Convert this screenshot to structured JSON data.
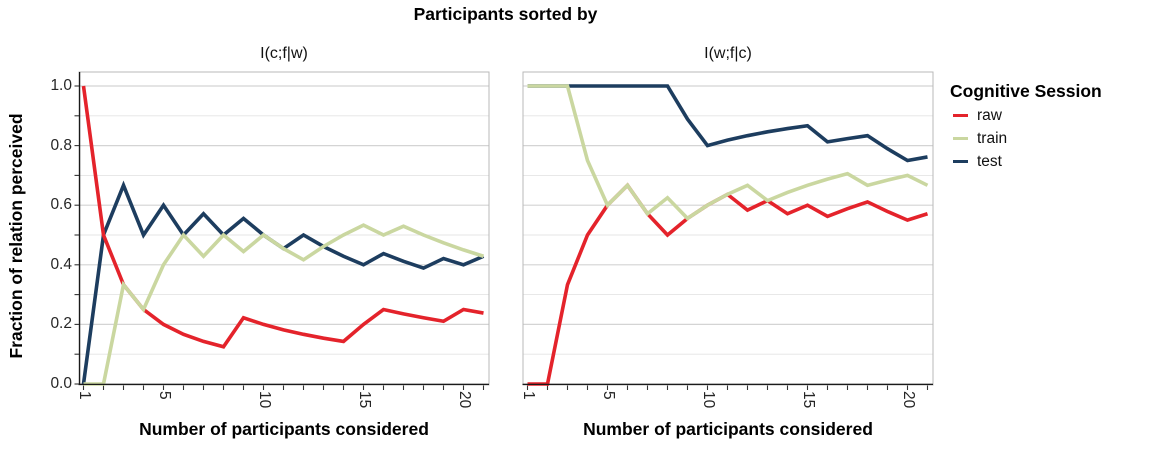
{
  "title": "Participants sorted by",
  "y_axis": {
    "label": "Fraction of relation perceived",
    "tick_labels": [
      "0.0",
      "0.2",
      "0.4",
      "0.6",
      "0.8",
      "1.0"
    ],
    "tick_values": [
      0,
      0.2,
      0.4,
      0.6,
      0.8,
      1.0
    ],
    "minor_values": [
      0.1,
      0.3,
      0.5,
      0.7,
      0.9
    ],
    "range": [
      0,
      1
    ]
  },
  "x_axis": {
    "label": "Number of participants considered",
    "major_tick_labels": [
      "1",
      "5",
      "10",
      "15",
      "20"
    ],
    "major_tick_values": [
      1,
      5,
      10,
      15,
      20
    ],
    "minor_tick_every": 1,
    "range": [
      1,
      21
    ]
  },
  "legend": {
    "title": "Cognitive Session",
    "items": [
      {
        "label": "raw",
        "color": "#e4232b"
      },
      {
        "label": "train",
        "color": "#cad7a0"
      },
      {
        "label": "test",
        "color": "#1d3d5f"
      }
    ]
  },
  "style_colors": {
    "grid_major": "#d4d4d4",
    "grid_minor": "#e4e4e4",
    "panel_border": "#b9b9b9",
    "axis_line": "#1a1a1a",
    "tick_mark": "#333333"
  },
  "chart_data": [
    {
      "type": "line",
      "title": "I(c;f|w)",
      "xlabel": "Number of participants considered",
      "ylabel": "Fraction of relation perceived",
      "ylim": [
        0,
        1
      ],
      "grid": "horizontal-only",
      "legend_position": "right",
      "x": [
        1,
        2,
        3,
        4,
        5,
        6,
        7,
        8,
        9,
        10,
        11,
        12,
        13,
        14,
        15,
        16,
        17,
        18,
        19,
        20,
        21
      ],
      "series": [
        {
          "name": "raw",
          "values": [
            1,
            0.5,
            0.3333,
            0.25,
            0.2,
            0.1667,
            0.1429,
            0.125,
            0.2222,
            0.2,
            0.1818,
            0.1667,
            0.1538,
            0.1429,
            0.2,
            0.25,
            0.2353,
            0.2222,
            0.2105,
            0.25,
            0.2381
          ]
        },
        {
          "name": "train",
          "values": [
            0,
            0,
            0.3333,
            0.25,
            0.4,
            0.5,
            0.4286,
            0.5,
            0.4444,
            0.5,
            0.4545,
            0.4167,
            0.4615,
            0.5,
            0.5333,
            0.5,
            0.5294,
            0.5,
            0.4737,
            0.45,
            0.4286
          ]
        },
        {
          "name": "test",
          "values": [
            0,
            0.5,
            0.6667,
            0.5,
            0.6,
            0.5,
            0.5714,
            0.5,
            0.5556,
            0.5,
            0.4545,
            0.5,
            0.4615,
            0.4286,
            0.4,
            0.4375,
            0.4118,
            0.3889,
            0.4211,
            0.4,
            0.4286
          ]
        }
      ]
    },
    {
      "type": "line",
      "title": "I(w;f|c)",
      "xlabel": "Number of participants considered",
      "ylabel": "Fraction of relation perceived",
      "ylim": [
        0,
        1
      ],
      "grid": "horizontal-only",
      "legend_position": "right",
      "x": [
        1,
        2,
        3,
        4,
        5,
        6,
        7,
        8,
        9,
        10,
        11,
        12,
        13,
        14,
        15,
        16,
        17,
        18,
        19,
        20,
        21
      ],
      "series": [
        {
          "name": "raw",
          "values": [
            0,
            0,
            0.3333,
            0.5,
            0.6,
            0.6667,
            0.5714,
            0.5,
            0.5556,
            0.6,
            0.6364,
            0.5833,
            0.6154,
            0.5714,
            0.6,
            0.5625,
            0.5882,
            0.6111,
            0.5789,
            0.55,
            0.5714
          ]
        },
        {
          "name": "train",
          "values": [
            1,
            1,
            1,
            0.75,
            0.6,
            0.6667,
            0.5714,
            0.625,
            0.5556,
            0.6,
            0.6364,
            0.6667,
            0.6154,
            0.6429,
            0.6667,
            0.6875,
            0.7059,
            0.6667,
            0.6842,
            0.7,
            0.6667
          ]
        },
        {
          "name": "test",
          "values": [
            1,
            1,
            1,
            1,
            1,
            1,
            1,
            1,
            0.8889,
            0.8,
            0.8182,
            0.8333,
            0.8462,
            0.8571,
            0.8667,
            0.8125,
            0.8235,
            0.8333,
            0.7895,
            0.75,
            0.7619
          ]
        }
      ]
    }
  ]
}
